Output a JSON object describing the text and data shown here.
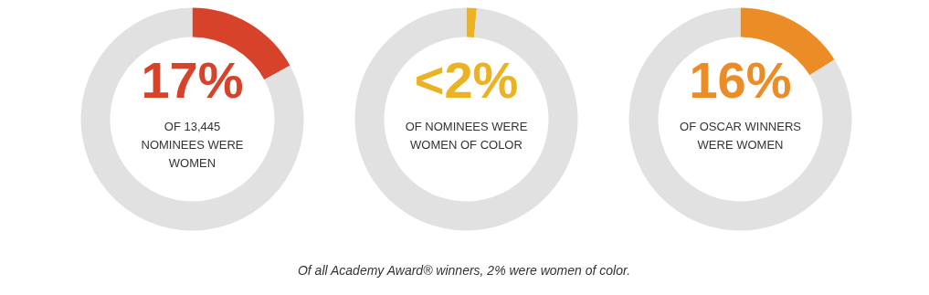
{
  "chart_data": [
    {
      "type": "donut",
      "categories": [
        null,
        null
      ],
      "values": [
        17,
        83
      ],
      "colors": [
        "#d6432a",
        "#e1e1e1"
      ],
      "value_labels": [
        "17%",
        null
      ],
      "annotations": [
        "OF 13,445\nNOMINEES WERE\nWOMEN"
      ]
    },
    {
      "type": "donut",
      "categories": [
        null,
        null
      ],
      "values": [
        1.5,
        98.5
      ],
      "colors": [
        "#ebb324",
        "#e1e1e1"
      ],
      "value_labels": [
        "<2%",
        null
      ],
      "annotations": [
        "OF NOMINEES WERE\nWOMEN OF COLOR"
      ]
    },
    {
      "type": "donut",
      "categories": [
        null,
        null
      ],
      "values": [
        16,
        84
      ],
      "colors": [
        "#ec8c26",
        "#e1e1e1"
      ],
      "value_labels": [
        "16%",
        null
      ],
      "annotations": [
        "OF OSCAR WINNERS\nWERE WOMEN"
      ]
    },
    {
      "type": "other",
      "annotations": [
        "Of all Academy Award® winners, 2% were women of color."
      ]
    }
  ]
}
